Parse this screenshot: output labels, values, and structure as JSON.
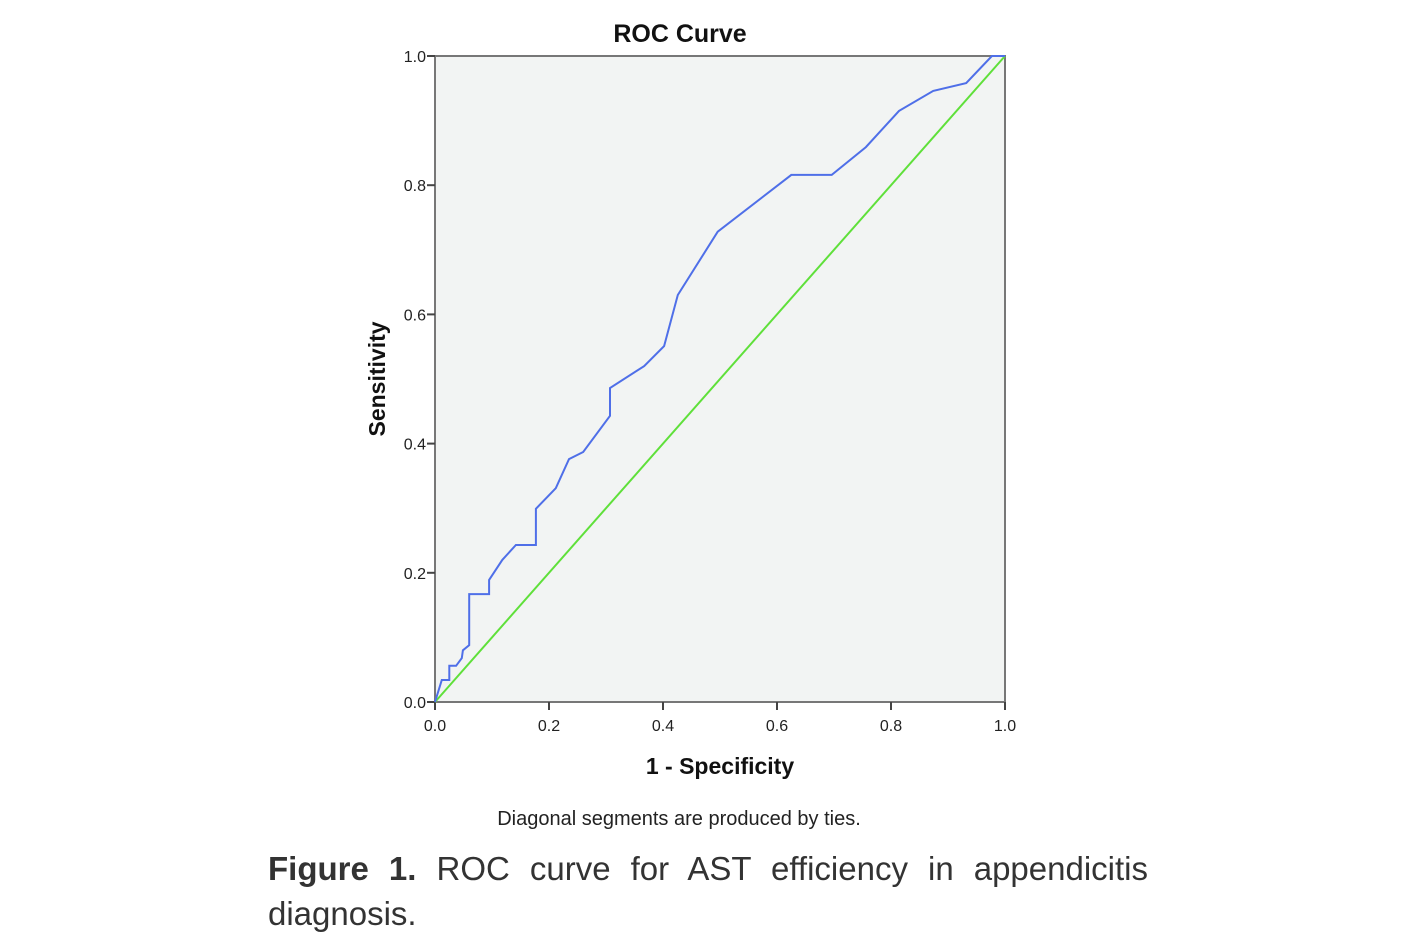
{
  "chart_data": {
    "type": "line",
    "title": "ROC Curve",
    "xlabel": "1 - Specificity",
    "ylabel": "Sensitivity",
    "xlim": [
      0,
      1
    ],
    "ylim": [
      0,
      1
    ],
    "xticks": [
      "0.0",
      "0.2",
      "0.4",
      "0.6",
      "0.8",
      "1.0"
    ],
    "yticks": [
      "0.0",
      "0.2",
      "0.4",
      "0.6",
      "0.8",
      "1.0"
    ],
    "grid": false,
    "plot_background": "#f2f4f3",
    "note": "Diagonal segments are produced by ties.",
    "series": [
      {
        "color": "#4f6fe8",
        "x": [
          0,
          0.012,
          0.025,
          0.025,
          0.037,
          0.047,
          0.049,
          0.06,
          0.06,
          0.095,
          0.095,
          0.118,
          0.142,
          0.177,
          0.177,
          0.212,
          0.235,
          0.26,
          0.307,
          0.307,
          0.367,
          0.402,
          0.426,
          0.496,
          0.625,
          0.696,
          0.756,
          0.814,
          0.874,
          0.932,
          0.977,
          1
        ],
        "y": [
          0,
          0.034,
          0.034,
          0.056,
          0.056,
          0.068,
          0.08,
          0.088,
          0.167,
          0.167,
          0.189,
          0.22,
          0.243,
          0.243,
          0.299,
          0.331,
          0.376,
          0.387,
          0.443,
          0.486,
          0.52,
          0.551,
          0.63,
          0.728,
          0.816,
          0.816,
          0.859,
          0.915,
          0.946,
          0.958,
          1,
          1
        ]
      },
      {
        "color": "#5fe03a",
        "x": [
          0,
          1
        ],
        "y": [
          0,
          1
        ]
      }
    ]
  },
  "caption": {
    "label": "Figure 1.",
    "text": "ROC curve for AST efficiency in appendicitis diagnosis."
  }
}
